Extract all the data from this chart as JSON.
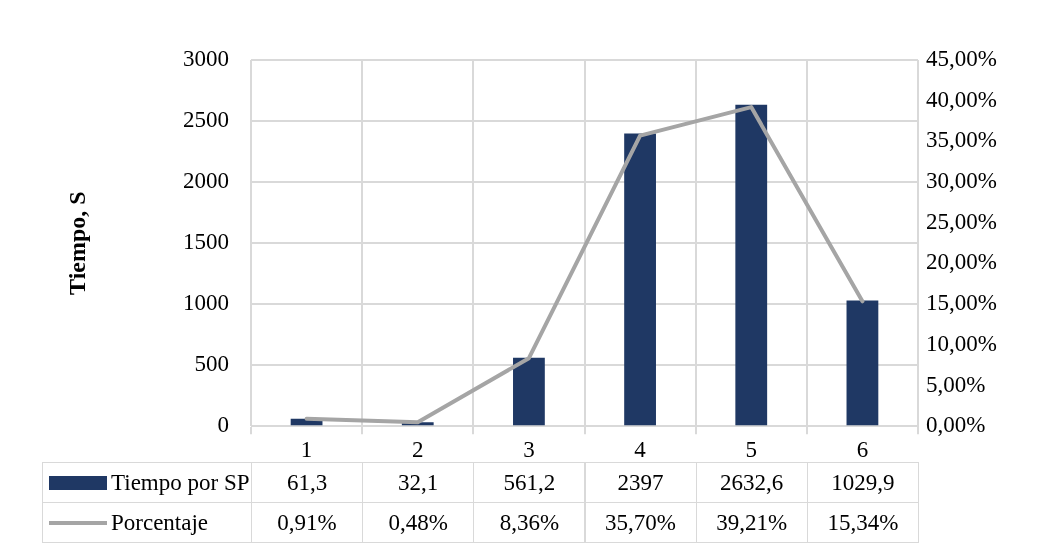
{
  "chart_data": {
    "type": "bar",
    "ylabel": "Tiempo, S",
    "categories": [
      "1",
      "2",
      "3",
      "4",
      "5",
      "6"
    ],
    "series": [
      {
        "name": "Tiempo por SP",
        "color": "#1f3864",
        "values": [
          61.3,
          32.1,
          561.2,
          2397,
          2632.6,
          1029.9
        ],
        "value_labels": [
          "61,3",
          "32,1",
          "561,2",
          "2397",
          "2632,6",
          "1029,9"
        ]
      },
      {
        "name": "Porcentaje",
        "type": "line",
        "axis": "y2",
        "color": "#a5a5a5",
        "values": [
          0.91,
          0.48,
          8.36,
          35.7,
          39.21,
          15.34
        ],
        "value_labels": [
          "0,91%",
          "0,48%",
          "8,36%",
          "35,70%",
          "39,21%",
          "15,34%"
        ]
      }
    ],
    "ylim": [
      0,
      3000
    ],
    "yticks": [
      0,
      500,
      1000,
      1500,
      2000,
      2500,
      3000
    ],
    "y2lim": [
      0,
      45
    ],
    "y2ticks": [
      {
        "value": 0,
        "label": "0,00%"
      },
      {
        "value": 5,
        "label": "5,00%"
      },
      {
        "value": 10,
        "label": "10,00%"
      },
      {
        "value": 15,
        "label": "15,00%"
      },
      {
        "value": 20,
        "label": "20,00%"
      },
      {
        "value": 25,
        "label": "25,00%"
      },
      {
        "value": 30,
        "label": "30,00%"
      },
      {
        "value": 35,
        "label": "35,00%"
      },
      {
        "value": 40,
        "label": "40,00%"
      },
      {
        "value": 45,
        "label": "45,00%"
      }
    ],
    "grid": true,
    "legend": "bottom",
    "marker": "none"
  }
}
